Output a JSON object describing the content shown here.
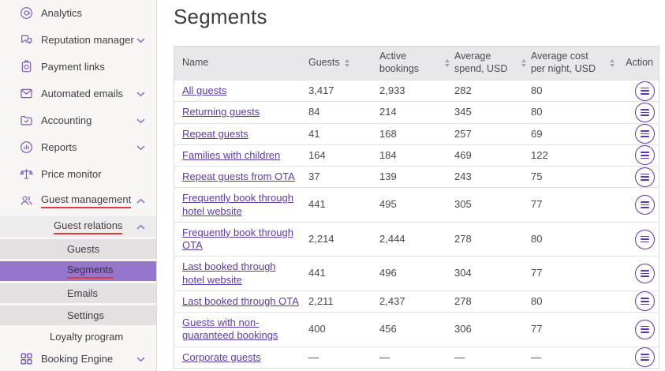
{
  "colors": {
    "accent_purple": "#7e57c2",
    "link_purple": "#5d3aa9",
    "selected_item_bg": "#9575cd",
    "annotation_red": "#e03c3c",
    "table_header_bg": "#e8e8ea",
    "sidebar_bg": "#f7f6f4"
  },
  "sidebar": {
    "items": [
      {
        "label": "Analytics",
        "icon": "analytics",
        "variant": "main"
      },
      {
        "label": "Reputation manager",
        "icon": "reputation",
        "variant": "main",
        "chevron": "down"
      },
      {
        "label": "Payment links",
        "icon": "payment",
        "variant": "main"
      },
      {
        "label": "Automated emails",
        "icon": "email",
        "variant": "main",
        "chevron": "down"
      },
      {
        "label": "Accounting",
        "icon": "accounting",
        "variant": "main",
        "chevron": "down"
      },
      {
        "label": "Reports",
        "icon": "reports",
        "variant": "main",
        "chevron": "down"
      },
      {
        "label": "Price monitor",
        "icon": "price",
        "variant": "main"
      },
      {
        "label": "Guest management",
        "icon": "guests",
        "variant": "main",
        "chevron": "up",
        "underlined": true
      },
      {
        "label": "Guest relations",
        "variant": "relations",
        "chevron": "up",
        "underlined": true
      },
      {
        "label": "Guests",
        "variant": "sub"
      },
      {
        "label": "Segments",
        "variant": "sub",
        "selected": true,
        "underlined": true
      },
      {
        "label": "Emails",
        "variant": "sub"
      },
      {
        "label": "Settings",
        "variant": "sub"
      },
      {
        "label": "Loyalty program",
        "variant": "loyalty"
      },
      {
        "label": "Booking Engine",
        "icon": "grid",
        "variant": "engine",
        "chevron": "down"
      }
    ]
  },
  "main": {
    "title": "Segments",
    "table": {
      "columns": [
        "Name",
        "Guests",
        "Active bookings",
        "Average spend, USD",
        "Average cost per night, USD",
        "Action"
      ],
      "rows": [
        {
          "name": "All guests",
          "guests": "3,417",
          "active": "2,933",
          "spend": "282",
          "cost": "80"
        },
        {
          "name": "Returning guests",
          "guests": "84",
          "active": "214",
          "spend": "345",
          "cost": "80"
        },
        {
          "name": "Repeat guests",
          "guests": "41",
          "active": "168",
          "spend": "257",
          "cost": "69"
        },
        {
          "name": "Families with children",
          "guests": "164",
          "active": "184",
          "spend": "469",
          "cost": "122"
        },
        {
          "name": "Repeat guests from OTA",
          "guests": "37",
          "active": "139",
          "spend": "243",
          "cost": "75"
        },
        {
          "name": "Frequently book through hotel website",
          "guests": "441",
          "active": "495",
          "spend": "305",
          "cost": "77"
        },
        {
          "name": "Frequently book through OTA",
          "guests": "2,214",
          "active": "2,444",
          "spend": "278",
          "cost": "80"
        },
        {
          "name": "Last booked through hotel website",
          "guests": "441",
          "active": "496",
          "spend": "304",
          "cost": "77"
        },
        {
          "name": "Last booked through OTA",
          "guests": "2,211",
          "active": "2,437",
          "spend": "278",
          "cost": "80"
        },
        {
          "name": "Guests with non-guaranteed bookings",
          "guests": "400",
          "active": "456",
          "spend": "306",
          "cost": "77"
        },
        {
          "name": "Corporate guests",
          "guests": "—",
          "active": "—",
          "spend": "—",
          "cost": "—"
        }
      ]
    }
  }
}
